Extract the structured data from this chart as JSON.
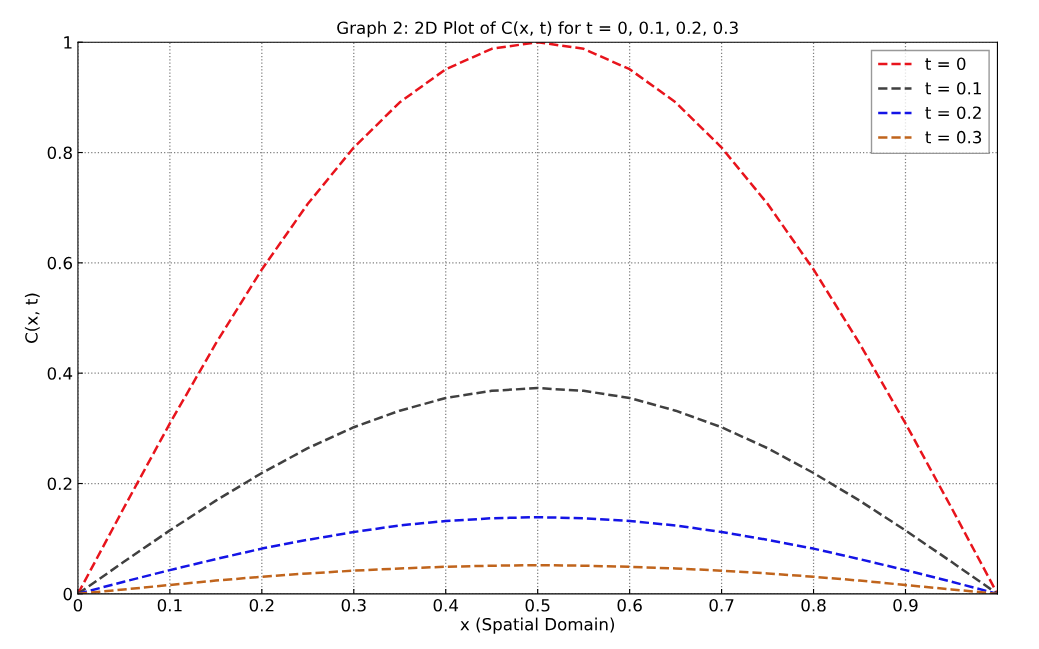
{
  "chart_data": {
    "type": "line",
    "title": "Graph 2: 2D Plot of C(x, t) for t = 0, 0.1, 0.2, 0.3",
    "xlabel": "x (Spatial Domain)",
    "ylabel": "C(x, t)",
    "x": [
      0,
      0.05,
      0.1,
      0.15,
      0.2,
      0.25,
      0.3,
      0.35,
      0.4,
      0.45,
      0.5,
      0.55,
      0.6,
      0.65,
      0.7,
      0.75,
      0.8,
      0.85,
      0.9,
      0.95,
      1
    ],
    "series": [
      {
        "name": "t = 0",
        "color": "#e8141c",
        "values": [
          0,
          0.156,
          0.309,
          0.454,
          0.588,
          0.707,
          0.809,
          0.891,
          0.951,
          0.988,
          1,
          0.988,
          0.951,
          0.891,
          0.809,
          0.707,
          0.588,
          0.454,
          0.309,
          0.156,
          0
        ]
      },
      {
        "name": "t = 0.1",
        "color": "#404040",
        "values": [
          0,
          0.058,
          0.115,
          0.169,
          0.219,
          0.264,
          0.302,
          0.332,
          0.355,
          0.368,
          0.373,
          0.368,
          0.355,
          0.332,
          0.302,
          0.264,
          0.219,
          0.169,
          0.115,
          0.058,
          0
        ]
      },
      {
        "name": "t = 0.2",
        "color": "#1414e6",
        "values": [
          0,
          0.022,
          0.043,
          0.063,
          0.082,
          0.098,
          0.112,
          0.124,
          0.132,
          0.137,
          0.139,
          0.137,
          0.132,
          0.124,
          0.112,
          0.098,
          0.082,
          0.063,
          0.043,
          0.022,
          0
        ]
      },
      {
        "name": "t = 0.3",
        "color": "#c0641c",
        "values": [
          0,
          0.008,
          0.016,
          0.024,
          0.031,
          0.037,
          0.042,
          0.046,
          0.049,
          0.051,
          0.052,
          0.051,
          0.049,
          0.046,
          0.042,
          0.037,
          0.031,
          0.024,
          0.016,
          0.008,
          0
        ]
      }
    ],
    "xlim": [
      0,
      1
    ],
    "xticks": [
      0,
      0.1,
      0.2,
      0.3,
      0.4,
      0.5,
      0.6,
      0.7,
      0.8,
      0.9
    ],
    "ylim": [
      0,
      1
    ],
    "yticks": [
      0,
      0.2,
      0.4,
      0.6,
      0.8,
      1
    ],
    "grid": true,
    "legend": "top right",
    "line_style": "dashed",
    "marker": "none"
  }
}
